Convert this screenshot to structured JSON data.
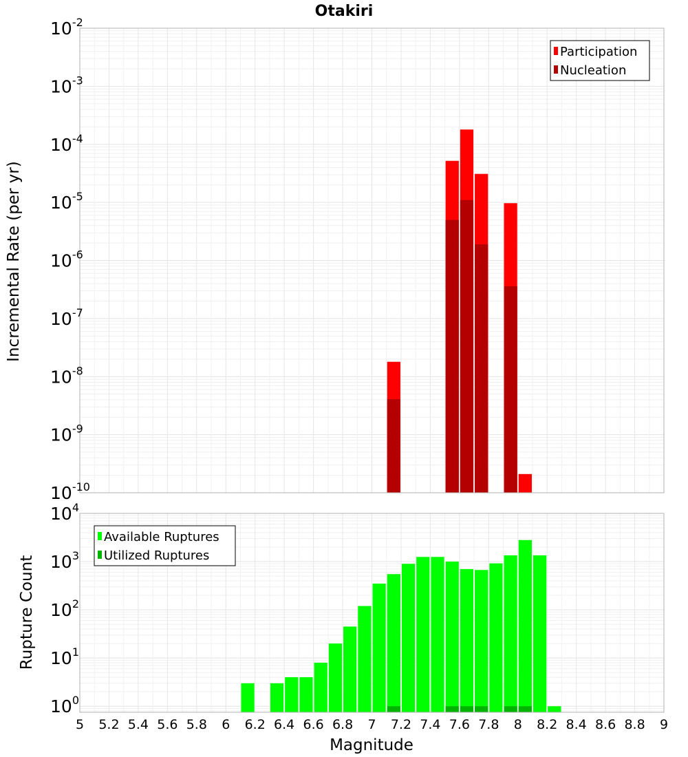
{
  "chart_data": {
    "title": "Otakiri",
    "xlabel": "Magnitude",
    "xlim": [
      5,
      9
    ],
    "x_ticks": [
      "5",
      "5.2",
      "5.4",
      "5.6",
      "5.8",
      "6",
      "6.2",
      "6.4",
      "6.6",
      "6.8",
      "7",
      "7.2",
      "7.4",
      "7.6",
      "7.8",
      "8",
      "8.2",
      "8.4",
      "8.6",
      "8.8",
      "9"
    ],
    "bin_width": 0.1,
    "grid": true,
    "panels": [
      {
        "type": "bar",
        "ylabel": "Incremental Rate (per yr)",
        "yscale": "log",
        "ylim": [
          1e-10,
          0.01
        ],
        "y_tick_exponents": [
          -2,
          -3,
          -4,
          -5,
          -6,
          -7,
          -8,
          -9,
          -10
        ],
        "legend_position": "top-right",
        "series": [
          {
            "name": "Participation",
            "color": "#ff0000",
            "x": [
              7.15,
              7.55,
              7.65,
              7.75,
              7.95,
              8.05
            ],
            "values": [
              1.8e-08,
              5.2e-05,
              0.00018,
              3.1e-05,
              9.7e-06,
              2.1e-10
            ]
          },
          {
            "name": "Nucleation",
            "color": "#b40000",
            "x": [
              7.15,
              7.55,
              7.65,
              7.75,
              7.95
            ],
            "values": [
              4.1e-09,
              5e-06,
              1.1e-05,
              1.9e-06,
              3.6e-07
            ]
          }
        ]
      },
      {
        "type": "bar",
        "ylabel": "Rupture Count",
        "yscale": "log",
        "ylim": [
          0.75,
          10000
        ],
        "y_tick_exponents": [
          4,
          3,
          2,
          1,
          0
        ],
        "legend_position": "top-left",
        "series": [
          {
            "name": "Available Ruptures",
            "color": "#00ff00",
            "x": [
              6.15,
              6.35,
              6.45,
              6.55,
              6.65,
              6.75,
              6.85,
              6.95,
              7.05,
              7.15,
              7.25,
              7.35,
              7.45,
              7.55,
              7.65,
              7.75,
              7.85,
              7.95,
              8.05,
              8.15,
              8.25
            ],
            "values": [
              3,
              3,
              4,
              4,
              8,
              20,
              45,
              120,
              350,
              550,
              900,
              1250,
              1250,
              1000,
              700,
              670,
              920,
              1350,
              2800,
              1350,
              1
            ]
          },
          {
            "name": "Utilized Ruptures",
            "color": "#00b400",
            "x": [
              7.15,
              7.55,
              7.65,
              7.75,
              7.95,
              8.05
            ],
            "values": [
              1,
              1,
              1,
              1,
              1,
              1
            ]
          }
        ]
      }
    ]
  }
}
